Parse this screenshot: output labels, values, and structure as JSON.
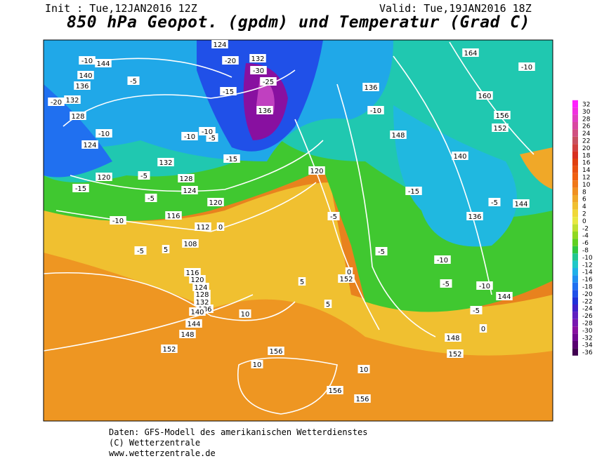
{
  "header": {
    "init": "Init : Tue,12JAN2016 12Z",
    "valid": "Valid: Tue,19JAN2016 18Z",
    "title": "850 hPa Geopot. (gpdm) und Temperatur (Grad C)"
  },
  "footer": [
    "Daten: GFS-Modell des amerikanischen Wetterdienstes",
    "(C) Wetterzentrale",
    "www.wetterzentrale.de"
  ],
  "colorbar": {
    "levels": [
      32,
      30,
      28,
      26,
      24,
      22,
      20,
      18,
      16,
      14,
      12,
      10,
      8,
      6,
      4,
      2,
      0,
      -2,
      -4,
      -6,
      -8,
      -10,
      -12,
      -14,
      -16,
      -18,
      -20,
      -22,
      -24,
      -26,
      -28,
      -30,
      -32,
      -34,
      -36
    ],
    "colors": [
      "#ff20ff",
      "#f030e0",
      "#e040c0",
      "#d848a0",
      "#d05080",
      "#c85060",
      "#d04040",
      "#d83020",
      "#e04010",
      "#e85010",
      "#f06010",
      "#f07818",
      "#f09020",
      "#f0a828",
      "#f0c030",
      "#f0d838",
      "#e8e840",
      "#c0e030",
      "#90d820",
      "#60d020",
      "#30c840",
      "#20c890",
      "#20c8c8",
      "#20b0e8",
      "#2090f0",
      "#2070f0",
      "#2050e8",
      "#2030d8",
      "#4020c8",
      "#6020c0",
      "#7818b0",
      "#8810a0",
      "#700890",
      "#580070",
      "#400050"
    ]
  },
  "map": {
    "labels": [
      "144",
      "-10",
      "140",
      "-5",
      "136",
      "132",
      "-20",
      "128",
      "-10",
      "124",
      "-15",
      "120",
      "-10",
      "-5",
      "132",
      "-5",
      "128",
      "-10",
      "124",
      "-15",
      "120",
      "-5",
      "116",
      "-10",
      "112",
      "0",
      "108",
      "-5",
      "5",
      "116",
      "120",
      "124",
      "128",
      "132",
      "136",
      "140",
      "144",
      "148",
      "152",
      "124",
      "-20",
      "-25",
      "-30",
      "132",
      "136",
      "-15",
      "120",
      "-5",
      "136",
      "-10",
      "148",
      "164",
      "-10",
      "160",
      "156",
      "152",
      "140",
      "-5",
      "-15",
      "136",
      "-10",
      "-5",
      "144",
      "-5",
      "152",
      "5",
      "0",
      "5",
      "10",
      "156",
      "10",
      "10",
      "156",
      "156",
      "148",
      "152",
      "0",
      "-10",
      "144",
      "-5"
    ]
  }
}
